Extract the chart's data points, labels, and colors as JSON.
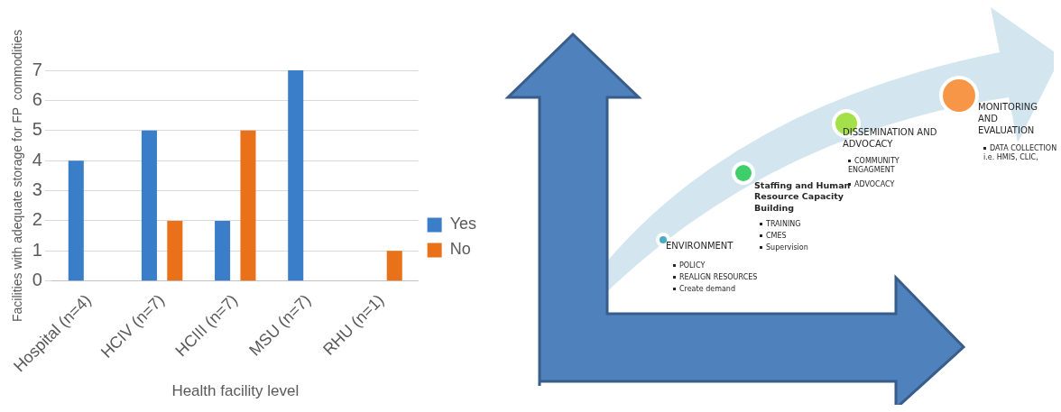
{
  "chart_data": [
    {
      "type": "bar",
      "xlabel": "Health facility level",
      "ylabel": "Facilities with adequate storage for FP  commodities",
      "categories": [
        "Hospital (n=4)",
        "HCIV (n=7)",
        "HCIII (n=7)",
        "MSU (n=7)",
        "RHU (n=1)"
      ],
      "series": [
        {
          "name": "Yes",
          "color": "#3a7dc9",
          "values": [
            4,
            5,
            2,
            7,
            0
          ]
        },
        {
          "name": "No",
          "color": "#e8711a",
          "values": [
            0,
            2,
            5,
            0,
            1
          ]
        }
      ],
      "ylim": [
        0,
        7
      ],
      "yticks": [
        0,
        1,
        2,
        3,
        4,
        5,
        6,
        7
      ],
      "grid": "y",
      "legend": "right"
    },
    {
      "type": "other",
      "annotations": [
        "ENVIRONMENT",
        "POLICY",
        "REALIGN  RESOURCES",
        "Create demand",
        "Staffing  and Human Resource  Capacity Building",
        "TRAINING",
        "CMES",
        "Supervision",
        "DISSEMINATION AND  ADVOCACY",
        "COMMUNITY ENGAGMENT",
        "ADVOCACY",
        "MONITORING AND EVALUATION",
        "DATA COLLECTION  i.e. HMIS, CLIC,"
      ]
    }
  ]
}
